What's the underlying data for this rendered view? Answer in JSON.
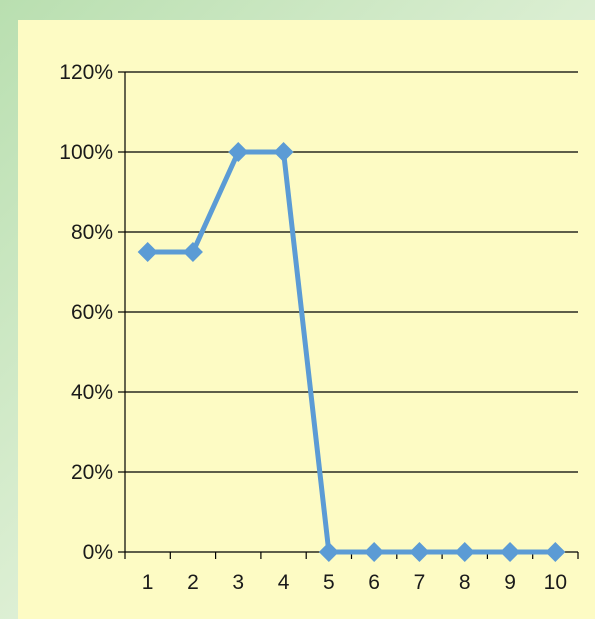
{
  "chart_data": {
    "type": "line",
    "x": [
      "1",
      "2",
      "3",
      "4",
      "5",
      "6",
      "7",
      "8",
      "9",
      "10"
    ],
    "series": [
      {
        "values": [
          75,
          75,
          100,
          100,
          0,
          0,
          0,
          0,
          0,
          0
        ]
      }
    ],
    "y_ticks": [
      "0%",
      "20%",
      "40%",
      "60%",
      "80%",
      "100%",
      "120%"
    ],
    "ylim": [
      0,
      120
    ],
    "y_unit": "%",
    "grid": "horizontal",
    "legend": "none",
    "colors": {
      "line": "#5b9bd5",
      "gridline": "#000000",
      "plot_background": "#fdfbc4",
      "outer_background": "#cfe8c6"
    }
  }
}
